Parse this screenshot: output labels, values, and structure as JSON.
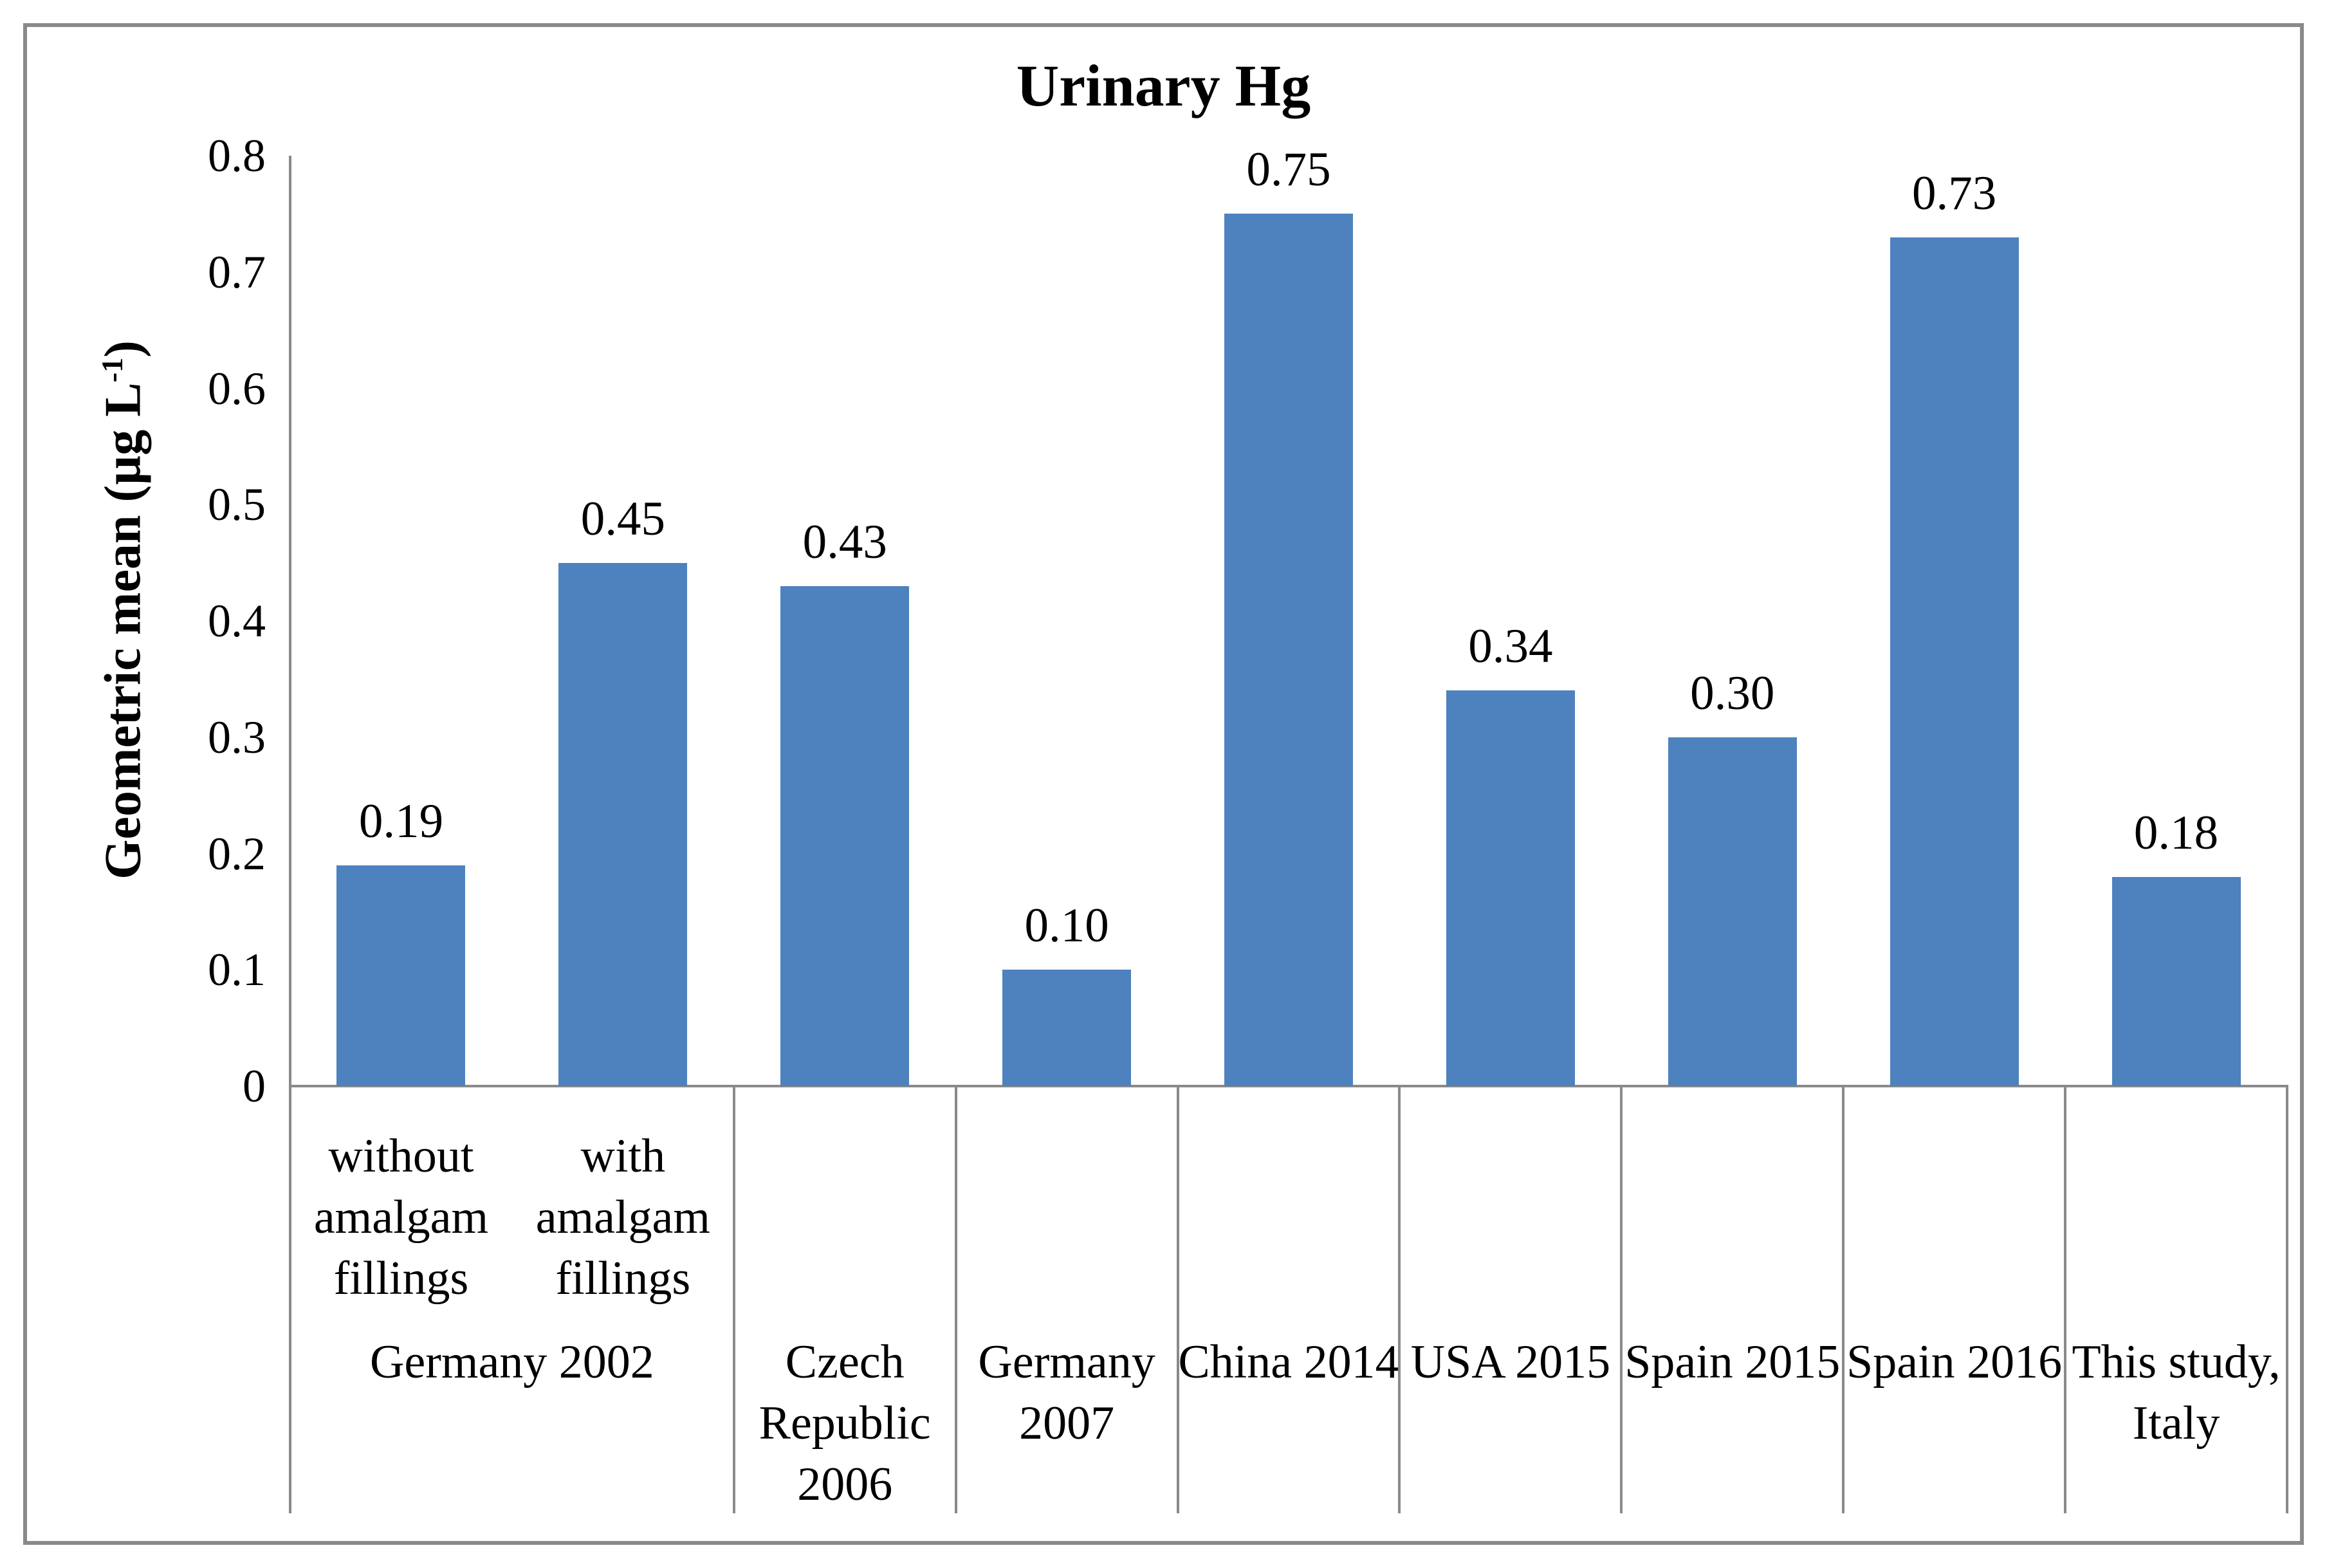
{
  "chart_data": {
    "type": "bar",
    "title": "Urinary Hg",
    "ylabel": {
      "prefix": "Geometric mean (µg L",
      "superscript": "-1",
      "suffix": ")",
      "text": "Geometric mean (µg L⁻¹)"
    },
    "xlabel": "",
    "ylim": [
      0,
      0.8
    ],
    "ytick_labels": [
      "0.8",
      "0.7",
      "0.6",
      "0.5",
      "0.4",
      "0.3",
      "0.2",
      "0.1",
      "0"
    ],
    "grid": false,
    "legend": false,
    "categories": [
      {
        "group": "Germany 2002",
        "sub": "without amalgam fillings"
      },
      {
        "group": "Germany 2002",
        "sub": "with amalgam fillings"
      },
      {
        "group": "Czech Republic 2006"
      },
      {
        "group": "Germany 2007"
      },
      {
        "group": "China 2014"
      },
      {
        "group": "USA 2015"
      },
      {
        "group": "Spain 2015"
      },
      {
        "group": "Spain 2016"
      },
      {
        "group": "This study, Italy"
      }
    ],
    "values": [
      0.19,
      0.45,
      0.43,
      0.1,
      0.75,
      0.34,
      0.3,
      0.73,
      0.18
    ],
    "data_labels": [
      "0.19",
      "0.45",
      "0.43",
      "0.10",
      "0.75",
      "0.34",
      "0.30",
      "0.73",
      "0.18"
    ],
    "colors": {
      "bar": "#4E82BE",
      "axis_line": "#8A8A8A",
      "frame_border": "#8A8A8A",
      "text": "#000000",
      "background": "#FFFFFF"
    }
  }
}
